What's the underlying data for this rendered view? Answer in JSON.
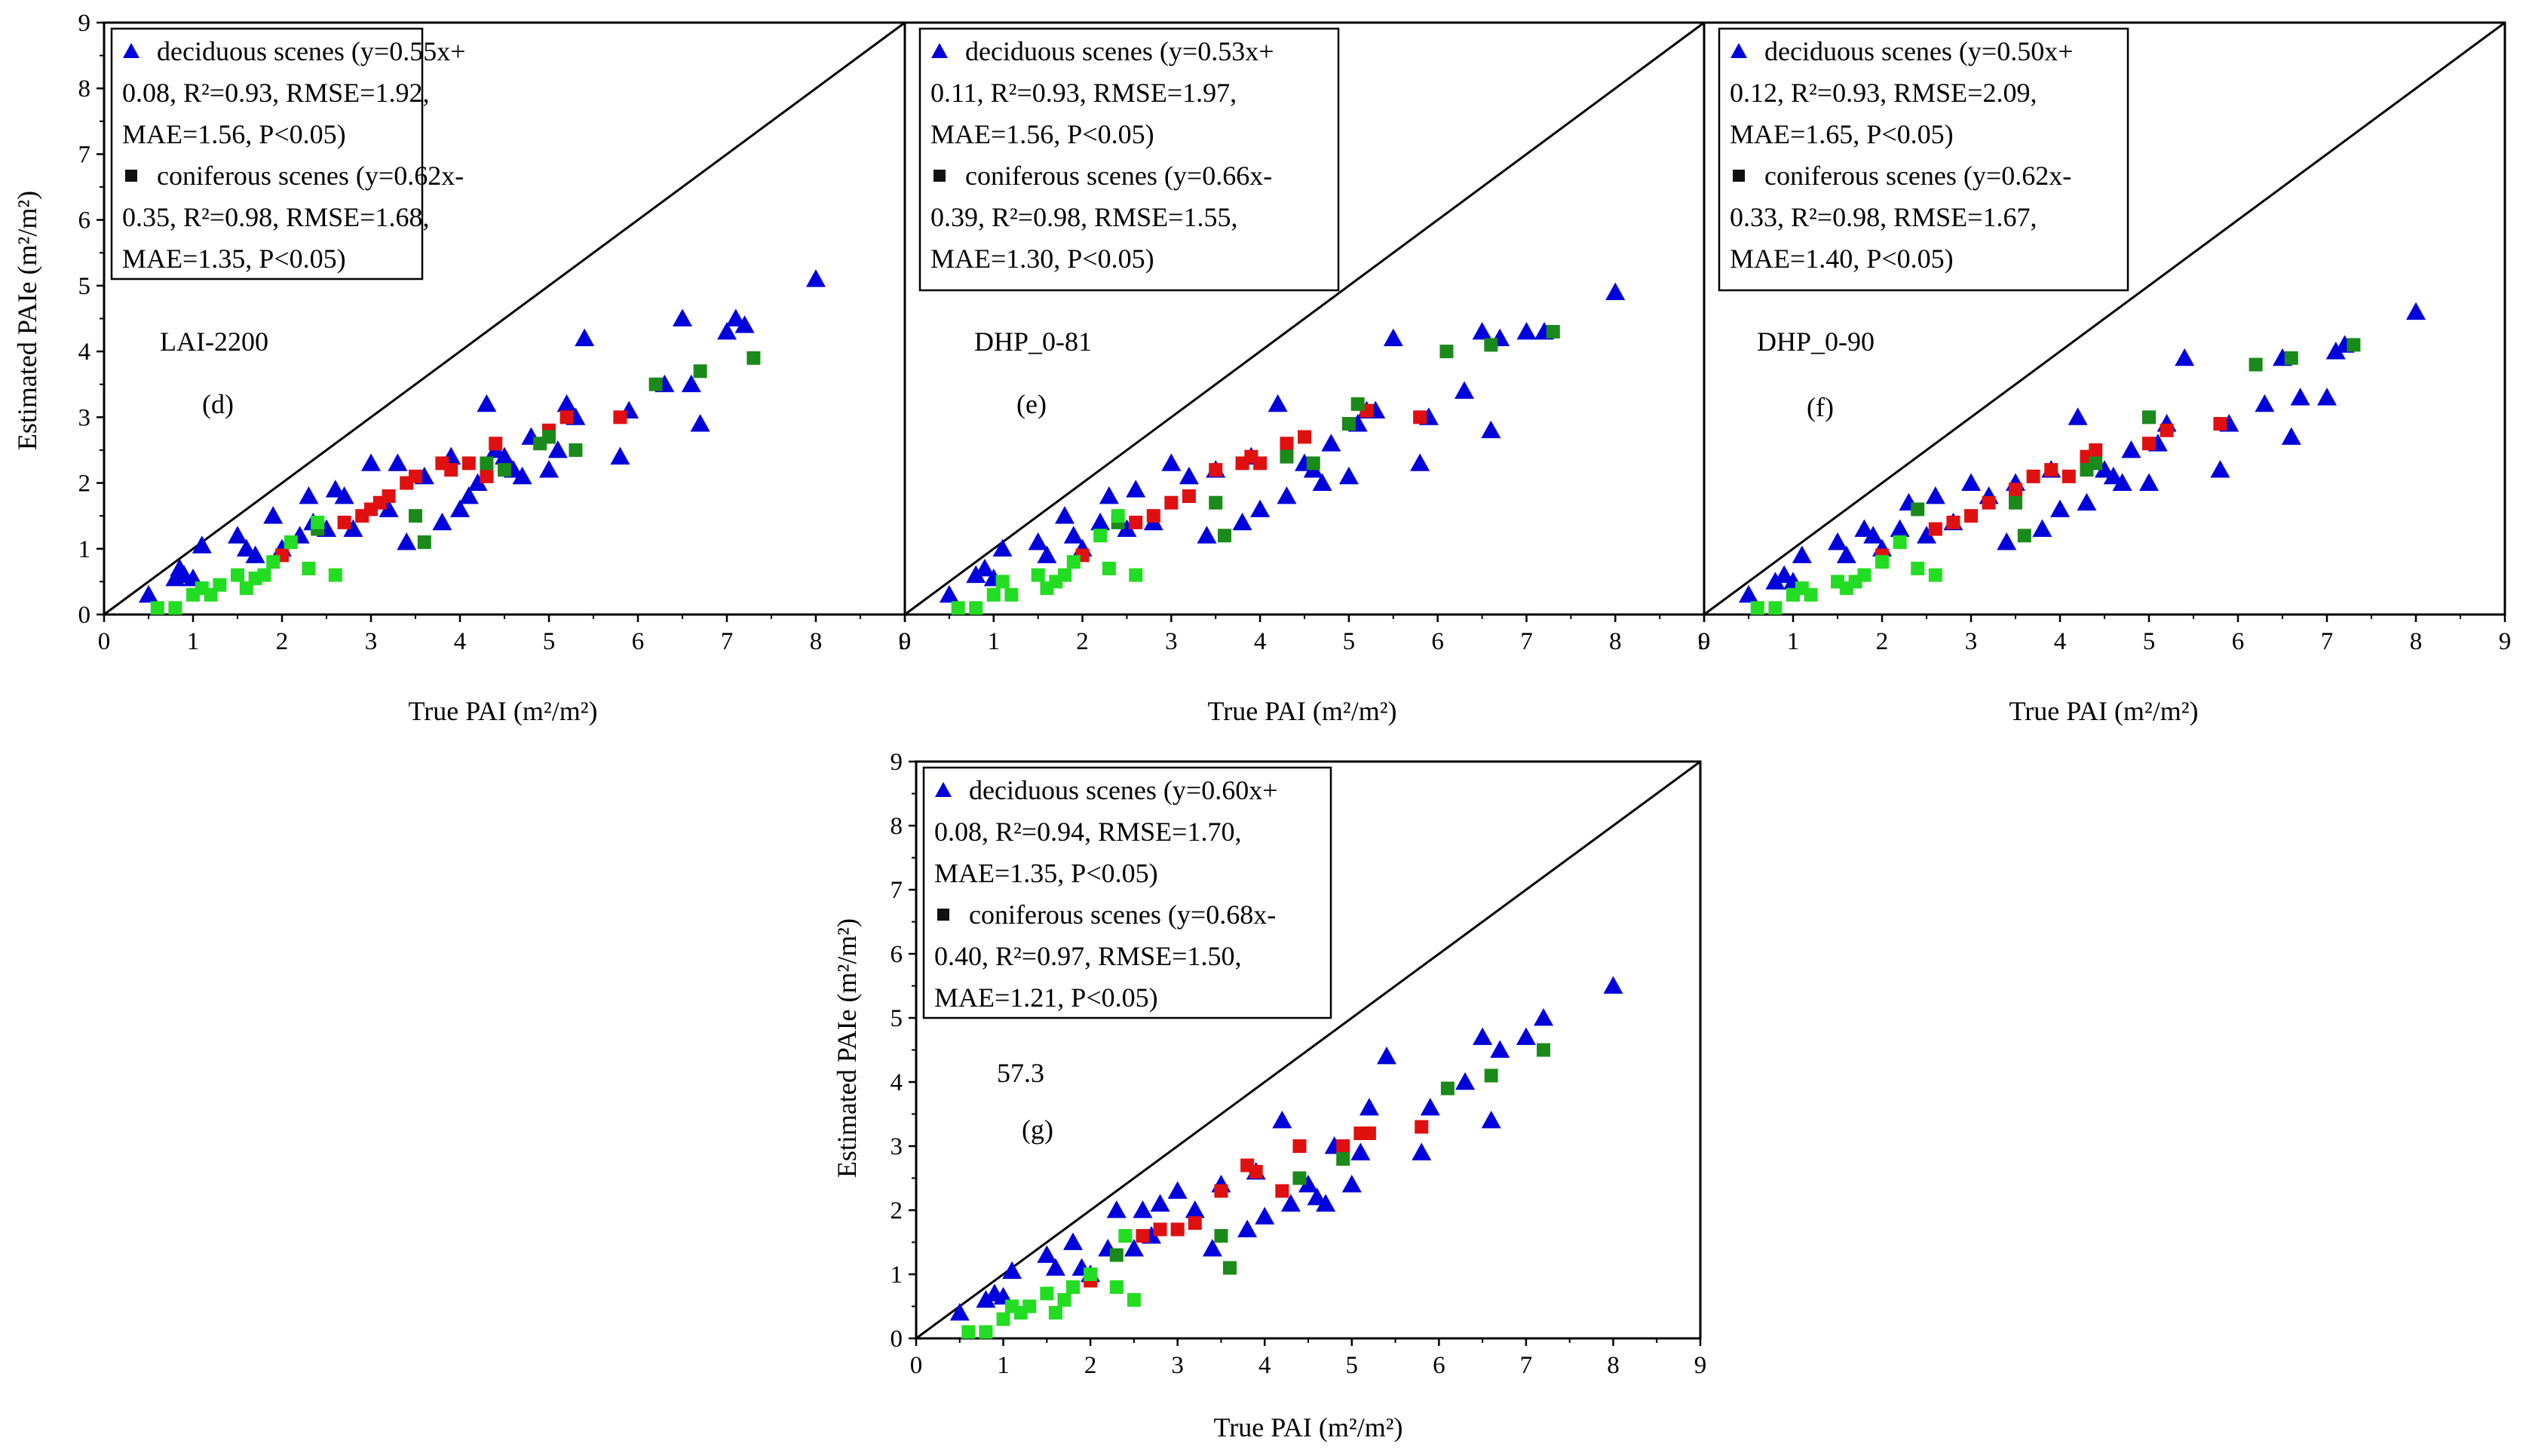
{
  "colors": {
    "deciduous": "#0000dd",
    "coniferous_a": "#e01010",
    "coniferous_b": "#1a8a1a",
    "coniferous_c": "#22dd22",
    "axis": "#000000"
  },
  "chart_data": [
    {
      "panel": "d",
      "type": "scatter",
      "method": "LAI-2200",
      "panel_label": "(d)",
      "xlabel": "True PAI (m²/m²)",
      "ylabel": "Estimated PAIe (m²/m²)",
      "xlim": [
        0,
        9
      ],
      "ylim": [
        0,
        9
      ],
      "xticks": [
        "0",
        "1",
        "2",
        "3",
        "4",
        "5",
        "6",
        "7",
        "8",
        "9"
      ],
      "yticks": [
        "0",
        "1",
        "2",
        "3",
        "4",
        "5",
        "6",
        "7",
        "8",
        "9"
      ],
      "legend": [
        {
          "marker": "triangle",
          "lines": [
            "deciduous scenes (y=0.55x+",
            "0.08, R²=0.93, RMSE=1.92,",
            "MAE=1.56, P<0.05)"
          ]
        },
        {
          "marker": "square",
          "lines": [
            "coniferous scenes (y=0.62x-",
            "0.35, R²=0.98, RMSE=1.68,",
            "MAE=1.35, P<0.05)"
          ]
        }
      ],
      "series": [
        {
          "name": "deciduous",
          "marker": "triangle",
          "color_key": "deciduous",
          "x": [
            0.5,
            0.8,
            0.85,
            0.9,
            1.0,
            1.1,
            1.5,
            1.6,
            1.7,
            1.9,
            2.0,
            2.2,
            2.3,
            2.35,
            2.5,
            2.6,
            2.7,
            2.8,
            3.0,
            3.2,
            3.3,
            3.4,
            3.6,
            3.8,
            3.9,
            4.0,
            4.1,
            4.2,
            4.3,
            4.4,
            4.5,
            4.6,
            4.7,
            4.8,
            5.0,
            5.1,
            5.2,
            5.3,
            5.4,
            5.8,
            5.9,
            6.3,
            6.5,
            6.6,
            6.7,
            7.0,
            7.1,
            7.2,
            8.0
          ],
          "y": [
            0.3,
            0.55,
            0.7,
            0.6,
            0.55,
            1.05,
            1.2,
            1.0,
            0.9,
            1.5,
            1.0,
            1.2,
            1.8,
            1.4,
            1.3,
            1.9,
            1.8,
            1.3,
            2.3,
            1.6,
            2.3,
            1.1,
            2.1,
            1.4,
            2.4,
            1.6,
            1.8,
            2.0,
            3.2,
            2.5,
            2.4,
            2.2,
            2.1,
            2.7,
            2.2,
            2.5,
            3.2,
            3.0,
            4.2,
            2.4,
            3.1,
            3.5,
            4.5,
            3.5,
            2.9,
            4.3,
            4.5,
            4.4,
            5.1
          ]
        },
        {
          "name": "coniferous (red)",
          "marker": "square",
          "color_key": "coniferous_a",
          "x": [
            2.0,
            2.7,
            2.9,
            3.0,
            3.1,
            3.2,
            3.4,
            3.5,
            3.8,
            3.9,
            4.1,
            4.3,
            4.4,
            5.0,
            5.2,
            5.8
          ],
          "y": [
            0.9,
            1.4,
            1.5,
            1.6,
            1.7,
            1.8,
            2.0,
            2.1,
            2.3,
            2.2,
            2.3,
            2.1,
            2.6,
            2.8,
            3.0,
            3.0
          ]
        },
        {
          "name": "coniferous (dark green)",
          "marker": "square",
          "color_key": "coniferous_b",
          "x": [
            2.4,
            3.5,
            3.6,
            4.3,
            4.5,
            4.9,
            5.0,
            5.3,
            6.2,
            6.7,
            7.3
          ],
          "y": [
            1.3,
            1.5,
            1.1,
            2.3,
            2.2,
            2.6,
            2.7,
            2.5,
            3.5,
            3.7,
            3.9
          ]
        },
        {
          "name": "coniferous (light green)",
          "marker": "square",
          "color_key": "coniferous_c",
          "x": [
            0.6,
            0.8,
            1.0,
            1.1,
            1.2,
            1.3,
            1.5,
            1.6,
            1.7,
            1.8,
            1.9,
            2.1,
            2.3,
            2.4,
            2.6
          ],
          "y": [
            0.1,
            0.1,
            0.3,
            0.4,
            0.3,
            0.45,
            0.6,
            0.4,
            0.55,
            0.6,
            0.8,
            1.1,
            0.7,
            1.4,
            0.6
          ]
        }
      ]
    },
    {
      "panel": "e",
      "type": "scatter",
      "method": "DHP_0-81",
      "panel_label": "(e)",
      "xlabel": "True PAI (m²/m²)",
      "ylabel": "",
      "xlim": [
        0,
        9
      ],
      "ylim": [
        0,
        9
      ],
      "xticks": [
        "0",
        "1",
        "2",
        "3",
        "4",
        "5",
        "6",
        "7",
        "8",
        "9"
      ],
      "yticks": [],
      "legend": [
        {
          "marker": "triangle",
          "lines": [
            "deciduous scenes (y=0.53x+",
            "0.11, R²=0.93, RMSE=1.97,",
            "MAE=1.56, P<0.05)"
          ]
        },
        {
          "marker": "square",
          "lines": [
            "coniferous scenes (y=0.66x-",
            "0.39, R²=0.98, RMSE=1.55,",
            "MAE=1.30, P<0.05)"
          ]
        }
      ],
      "series": [
        {
          "name": "deciduous",
          "marker": "triangle",
          "color_key": "deciduous",
          "x": [
            0.5,
            0.8,
            0.9,
            1.0,
            1.1,
            1.5,
            1.6,
            1.8,
            1.9,
            2.0,
            2.2,
            2.3,
            2.5,
            2.6,
            2.8,
            3.0,
            3.2,
            3.4,
            3.5,
            3.8,
            3.9,
            4.0,
            4.2,
            4.3,
            4.5,
            4.6,
            4.7,
            4.8,
            5.0,
            5.1,
            5.2,
            5.3,
            5.5,
            5.8,
            5.9,
            6.3,
            6.5,
            6.6,
            6.7,
            7.0,
            7.2,
            8.0
          ],
          "y": [
            0.3,
            0.6,
            0.7,
            0.55,
            1.0,
            1.1,
            0.9,
            1.5,
            1.2,
            1.0,
            1.4,
            1.8,
            1.3,
            1.9,
            1.4,
            2.3,
            2.1,
            1.2,
            2.2,
            1.4,
            2.4,
            1.6,
            3.2,
            1.8,
            2.3,
            2.2,
            2.0,
            2.6,
            2.1,
            2.9,
            3.1,
            3.1,
            4.2,
            2.3,
            3.0,
            3.4,
            4.3,
            2.8,
            4.2,
            4.3,
            4.3,
            4.9
          ]
        },
        {
          "name": "coniferous (red)",
          "marker": "square",
          "color_key": "coniferous_a",
          "x": [
            2.0,
            2.6,
            2.8,
            3.0,
            3.2,
            3.5,
            3.8,
            3.9,
            4.0,
            4.3,
            4.5,
            5.0,
            5.2,
            5.8
          ],
          "y": [
            0.9,
            1.4,
            1.5,
            1.7,
            1.8,
            2.2,
            2.3,
            2.4,
            2.3,
            2.6,
            2.7,
            2.9,
            3.1,
            3.0
          ]
        },
        {
          "name": "coniferous (dark green)",
          "marker": "square",
          "color_key": "coniferous_b",
          "x": [
            2.4,
            3.5,
            3.6,
            4.3,
            4.6,
            5.0,
            5.1,
            6.1,
            6.6,
            7.3
          ],
          "y": [
            1.4,
            1.7,
            1.2,
            2.4,
            2.3,
            2.9,
            3.2,
            4.0,
            4.1,
            4.3
          ]
        },
        {
          "name": "coniferous (light green)",
          "marker": "square",
          "color_key": "coniferous_c",
          "x": [
            0.6,
            0.8,
            1.0,
            1.1,
            1.2,
            1.5,
            1.6,
            1.7,
            1.8,
            1.9,
            2.2,
            2.3,
            2.4,
            2.6
          ],
          "y": [
            0.1,
            0.1,
            0.3,
            0.5,
            0.3,
            0.6,
            0.4,
            0.5,
            0.6,
            0.8,
            1.2,
            0.7,
            1.5,
            0.6
          ]
        }
      ]
    },
    {
      "panel": "f",
      "type": "scatter",
      "method": "DHP_0-90",
      "panel_label": "(f)",
      "xlabel": "True PAI (m²/m²)",
      "ylabel": "",
      "xlim": [
        0,
        9
      ],
      "ylim": [
        0,
        9
      ],
      "xticks": [
        "0",
        "1",
        "2",
        "3",
        "4",
        "5",
        "6",
        "7",
        "8",
        "9"
      ],
      "yticks": [],
      "legend": [
        {
          "marker": "triangle",
          "lines": [
            "deciduous scenes (y=0.50x+",
            "0.12, R²=0.93, RMSE=2.09,",
            "MAE=1.65, P<0.05)"
          ]
        },
        {
          "marker": "square",
          "lines": [
            "coniferous scenes (y=0.62x-",
            "0.33, R²=0.98, RMSE=1.67,",
            "MAE=1.40, P<0.05)"
          ]
        }
      ],
      "series": [
        {
          "name": "deciduous",
          "marker": "triangle",
          "color_key": "deciduous",
          "x": [
            0.5,
            0.8,
            0.9,
            1.0,
            1.1,
            1.5,
            1.6,
            1.8,
            1.9,
            2.0,
            2.2,
            2.3,
            2.5,
            2.6,
            2.8,
            3.0,
            3.2,
            3.4,
            3.5,
            3.8,
            3.9,
            4.0,
            4.2,
            4.3,
            4.5,
            4.6,
            4.7,
            4.8,
            5.0,
            5.1,
            5.2,
            5.4,
            5.8,
            5.9,
            6.3,
            6.5,
            6.6,
            6.7,
            7.0,
            7.1,
            7.2,
            8.0
          ],
          "y": [
            0.3,
            0.5,
            0.6,
            0.5,
            0.9,
            1.1,
            0.9,
            1.3,
            1.2,
            1.0,
            1.3,
            1.7,
            1.2,
            1.8,
            1.4,
            2.0,
            1.8,
            1.1,
            2.0,
            1.3,
            2.2,
            1.6,
            3.0,
            1.7,
            2.2,
            2.1,
            2.0,
            2.5,
            2.0,
            2.6,
            2.9,
            3.9,
            2.2,
            2.9,
            3.2,
            3.9,
            2.7,
            3.3,
            3.3,
            4.0,
            4.1,
            4.6
          ]
        },
        {
          "name": "coniferous (red)",
          "marker": "square",
          "color_key": "coniferous_a",
          "x": [
            2.0,
            2.6,
            2.8,
            3.0,
            3.2,
            3.5,
            3.7,
            3.9,
            4.1,
            4.3,
            4.4,
            5.0,
            5.2,
            5.8
          ],
          "y": [
            0.9,
            1.3,
            1.4,
            1.5,
            1.7,
            1.9,
            2.1,
            2.2,
            2.1,
            2.4,
            2.5,
            2.6,
            2.8,
            2.9
          ]
        },
        {
          "name": "coniferous (dark green)",
          "marker": "square",
          "color_key": "coniferous_b",
          "x": [
            2.4,
            3.5,
            3.6,
            4.3,
            4.4,
            5.0,
            6.2,
            6.6,
            7.3
          ],
          "y": [
            1.6,
            1.7,
            1.2,
            2.2,
            2.3,
            3.0,
            3.8,
            3.9,
            4.1
          ]
        },
        {
          "name": "coniferous (light green)",
          "marker": "square",
          "color_key": "coniferous_c",
          "x": [
            0.6,
            0.8,
            1.0,
            1.1,
            1.2,
            1.5,
            1.6,
            1.7,
            1.8,
            2.0,
            2.2,
            2.4,
            2.6
          ],
          "y": [
            0.1,
            0.1,
            0.3,
            0.4,
            0.3,
            0.5,
            0.4,
            0.5,
            0.6,
            0.8,
            1.1,
            0.7,
            0.6
          ]
        }
      ]
    },
    {
      "panel": "g",
      "type": "scatter",
      "method": "57.3",
      "panel_label": "(g)",
      "xlabel": "True PAI (m²/m²)",
      "ylabel": "Estimated PAIe (m²/m²)",
      "xlim": [
        0,
        9
      ],
      "ylim": [
        0,
        9
      ],
      "xticks": [
        "0",
        "1",
        "2",
        "3",
        "4",
        "5",
        "6",
        "7",
        "8",
        "9"
      ],
      "yticks": [
        "0",
        "1",
        "2",
        "3",
        "4",
        "5",
        "6",
        "7",
        "8",
        "9"
      ],
      "legend": [
        {
          "marker": "triangle",
          "lines": [
            "deciduous scenes (y=0.60x+",
            "0.08, R²=0.94, RMSE=1.70,",
            "MAE=1.35, P<0.05)"
          ]
        },
        {
          "marker": "square",
          "lines": [
            "coniferous scenes (y=0.68x-",
            "0.40, R²=0.97, RMSE=1.50,",
            "MAE=1.21, P<0.05)"
          ]
        }
      ],
      "series": [
        {
          "name": "deciduous",
          "marker": "triangle",
          "color_key": "deciduous",
          "x": [
            0.5,
            0.8,
            0.9,
            1.0,
            1.1,
            1.5,
            1.6,
            1.8,
            1.9,
            2.0,
            2.2,
            2.3,
            2.5,
            2.6,
            2.7,
            2.8,
            3.0,
            3.2,
            3.4,
            3.5,
            3.8,
            3.9,
            4.0,
            4.2,
            4.3,
            4.5,
            4.6,
            4.7,
            4.8,
            5.0,
            5.1,
            5.2,
            5.4,
            5.8,
            5.9,
            6.3,
            6.5,
            6.6,
            6.7,
            7.0,
            7.2,
            8.0
          ],
          "y": [
            0.4,
            0.6,
            0.7,
            0.65,
            1.05,
            1.3,
            1.1,
            1.5,
            1.1,
            1.0,
            1.4,
            2.0,
            1.4,
            2.0,
            1.6,
            2.1,
            2.3,
            2.0,
            1.4,
            2.4,
            1.7,
            2.6,
            1.9,
            3.4,
            2.1,
            2.4,
            2.2,
            2.1,
            3.0,
            2.4,
            2.9,
            3.6,
            4.4,
            2.9,
            3.6,
            4.0,
            4.7,
            3.4,
            4.5,
            4.7,
            5.0,
            5.5
          ]
        },
        {
          "name": "coniferous (red)",
          "marker": "square",
          "color_key": "coniferous_a",
          "x": [
            2.0,
            2.6,
            2.8,
            3.0,
            3.2,
            3.5,
            3.8,
            3.9,
            4.2,
            4.4,
            4.9,
            5.1,
            5.2,
            5.8
          ],
          "y": [
            0.9,
            1.6,
            1.7,
            1.7,
            1.8,
            2.3,
            2.7,
            2.6,
            2.3,
            3.0,
            3.0,
            3.2,
            3.2,
            3.3
          ]
        },
        {
          "name": "coniferous (dark green)",
          "marker": "square",
          "color_key": "coniferous_b",
          "x": [
            2.3,
            3.5,
            3.6,
            4.4,
            4.9,
            6.1,
            6.6,
            7.2
          ],
          "y": [
            1.3,
            1.6,
            1.1,
            2.5,
            2.8,
            3.9,
            4.1,
            4.5
          ]
        },
        {
          "name": "coniferous (light green)",
          "marker": "square",
          "color_key": "coniferous_c",
          "x": [
            0.6,
            0.8,
            1.0,
            1.1,
            1.2,
            1.3,
            1.5,
            1.6,
            1.7,
            1.8,
            2.0,
            2.3,
            2.4,
            2.5
          ],
          "y": [
            0.1,
            0.1,
            0.3,
            0.5,
            0.4,
            0.5,
            0.7,
            0.4,
            0.6,
            0.8,
            1.0,
            0.8,
            1.6,
            0.6
          ]
        }
      ]
    }
  ]
}
